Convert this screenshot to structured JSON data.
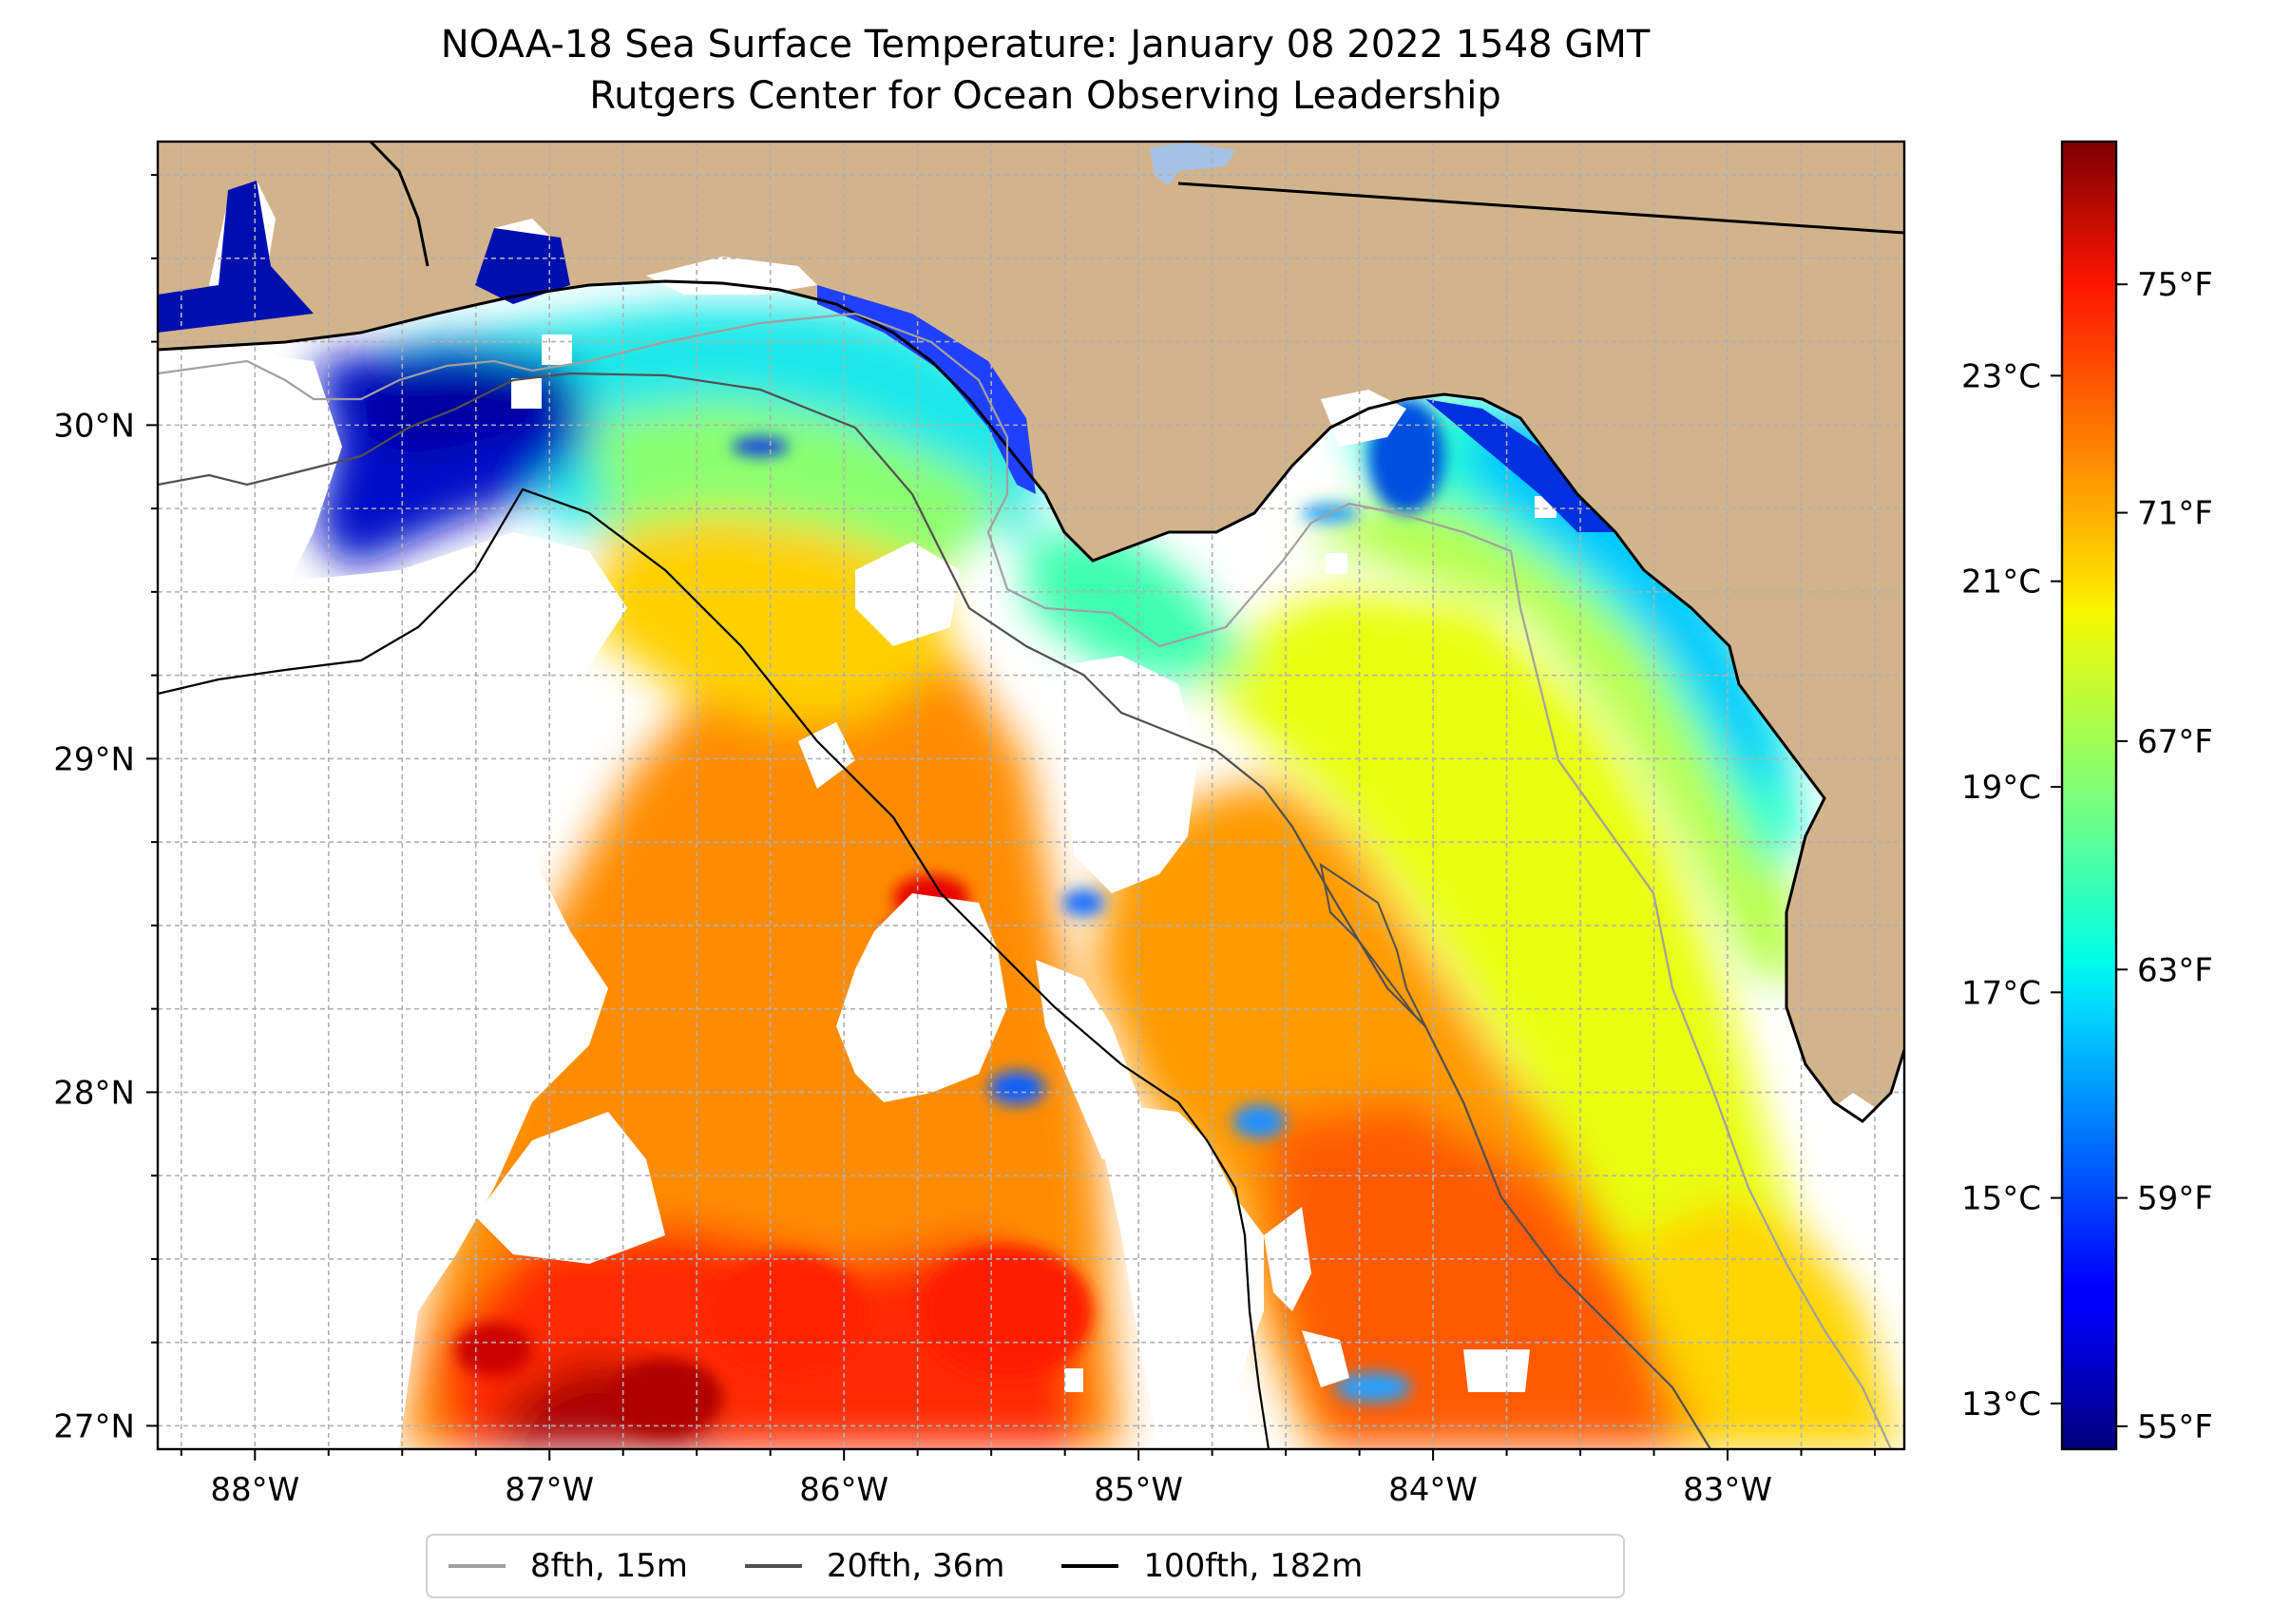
{
  "title": {
    "line1": "NOAA-18 Sea Surface Temperature: January 08 2022 1548 GMT",
    "line2": "Rutgers Center for Ocean Observing Leadership"
  },
  "map": {
    "lon_range": [
      -88.33,
      -82.4
    ],
    "lat_range": [
      26.93,
      30.85
    ],
    "lon_ticks": [
      {
        "value": -88,
        "label": "88°W"
      },
      {
        "value": -87,
        "label": "87°W"
      },
      {
        "value": -86,
        "label": "86°W"
      },
      {
        "value": -85,
        "label": "85°W"
      },
      {
        "value": -84,
        "label": "84°W"
      },
      {
        "value": -83,
        "label": "83°W"
      }
    ],
    "lat_ticks": [
      {
        "value": 30,
        "label": "30°N"
      },
      {
        "value": 29,
        "label": "29°N"
      },
      {
        "value": 28,
        "label": "28°N"
      },
      {
        "value": 27,
        "label": "27°N"
      }
    ],
    "minor_grid_step_deg": 0.25,
    "colors": {
      "land": "#d2b48c",
      "grid": "#b0b0b0",
      "coastline": "#000000",
      "iso_8fth": "#a0a0a0",
      "iso_20fth": "#505050",
      "iso_100fth": "#000000",
      "lake": "#a6c1e6"
    }
  },
  "colorbar": {
    "colormap": "jet",
    "range_f": [
      54.6,
      77.5
    ],
    "celsius_ticks": [
      {
        "value": 23,
        "label": "23°C"
      },
      {
        "value": 21,
        "label": "21°C"
      },
      {
        "value": 19,
        "label": "19°C"
      },
      {
        "value": 17,
        "label": "17°C"
      },
      {
        "value": 15,
        "label": "15°C"
      },
      {
        "value": 13,
        "label": "13°C"
      }
    ],
    "fahrenheit_ticks": [
      {
        "value": 75,
        "label": "75°F"
      },
      {
        "value": 71,
        "label": "71°F"
      },
      {
        "value": 67,
        "label": "67°F"
      },
      {
        "value": 63,
        "label": "63°F"
      },
      {
        "value": 59,
        "label": "59°F"
      },
      {
        "value": 55,
        "label": "55°F"
      }
    ]
  },
  "legend": {
    "items": [
      {
        "label": "8fth, 15m",
        "color": "#a0a0a0"
      },
      {
        "label": "20fth, 36m",
        "color": "#505050"
      },
      {
        "label": "100fth, 182m",
        "color": "#000000"
      }
    ]
  }
}
